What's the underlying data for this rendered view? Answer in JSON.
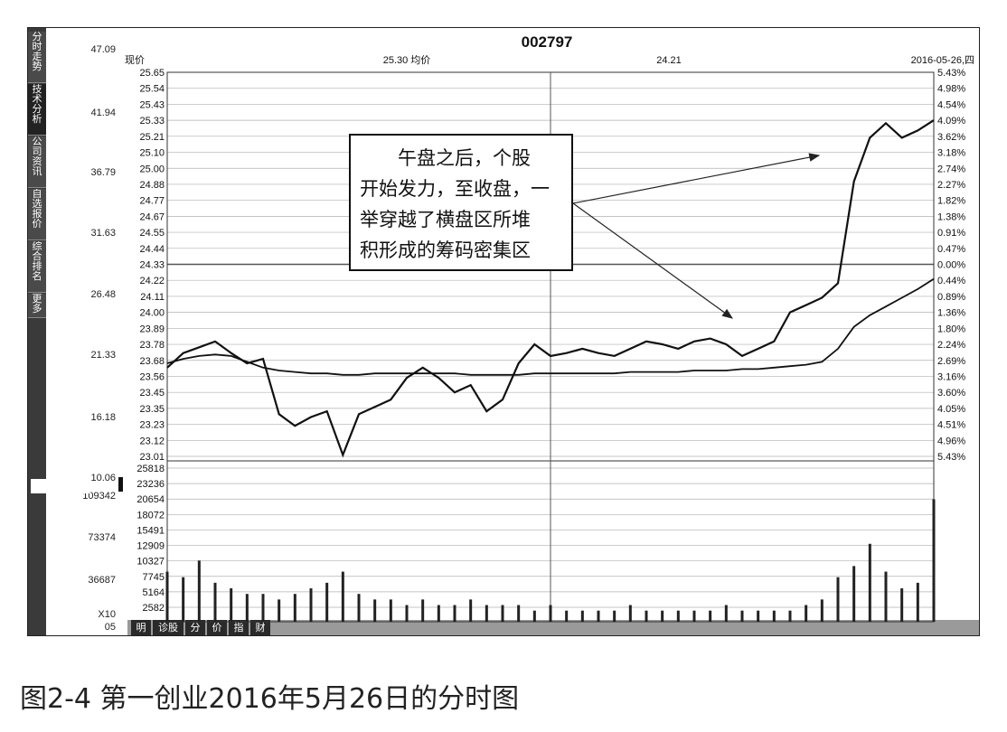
{
  "header": {
    "code": "002797",
    "left_label": "现价",
    "mid_label": "25.30 均价",
    "mid2_label": "24.21",
    "date_label": "2016-05-26,四"
  },
  "left_axis": [
    "47.09",
    "41.94",
    "36.79",
    "31.63",
    "26.48",
    "21.33",
    "16.18",
    "10.06",
    "109342",
    "73374",
    "36687",
    "X10",
    "05"
  ],
  "side_tabs": [
    "分时走势",
    "技术分析",
    "公司资讯",
    "自选报价",
    "综合排名",
    "更多"
  ],
  "bottom_tabs": [
    "明",
    "诊股",
    "分",
    "价",
    "指",
    "财"
  ],
  "annotation": {
    "lines": [
      "午盘之后，个股",
      "开始发力，至收盘，一",
      "举穿越了横盘区所堆",
      "积形成的筹码密集区"
    ]
  },
  "caption": "图2-4 第一创业2016年5月26日的分时图",
  "colors": {
    "line": "#111111",
    "grid": "#9a9a9a",
    "frame": "#222222"
  },
  "chart_data": {
    "type": "line",
    "title": "002797",
    "price_ticks": [
      "25.65",
      "25.54",
      "25.43",
      "25.33",
      "25.21",
      "25.10",
      "25.00",
      "24.88",
      "24.77",
      "24.67",
      "24.55",
      "24.44",
      "24.33",
      "24.22",
      "24.11",
      "24.00",
      "23.89",
      "23.78",
      "23.68",
      "23.56",
      "23.45",
      "23.35",
      "23.23",
      "23.12",
      "23.01"
    ],
    "pct_ticks": [
      "5.43%",
      "4.98%",
      "4.54%",
      "4.09%",
      "3.62%",
      "3.18%",
      "2.74%",
      "2.27%",
      "1.82%",
      "1.38%",
      "0.91%",
      "0.47%",
      "0.00%",
      "0.44%",
      "0.89%",
      "1.36%",
      "1.80%",
      "2.24%",
      "2.69%",
      "3.16%",
      "3.60%",
      "4.05%",
      "4.51%",
      "4.96%",
      "5.43%"
    ],
    "vol_ticks": [
      "25818",
      "23236",
      "20654",
      "18072",
      "15491",
      "12909",
      "10327",
      "7745",
      "5164",
      "2582"
    ],
    "ylim": [
      23.01,
      25.65
    ],
    "prev_close": 24.33,
    "x_minutes": [
      0,
      5,
      10,
      15,
      20,
      25,
      30,
      35,
      40,
      45,
      50,
      55,
      60,
      65,
      70,
      75,
      80,
      85,
      90,
      95,
      100,
      105,
      110,
      115,
      120,
      125,
      130,
      135,
      140,
      145,
      150,
      155,
      160,
      165,
      170,
      175,
      180,
      185,
      190,
      195,
      200,
      205,
      210,
      215,
      220,
      225,
      230,
      235,
      240
    ],
    "series": [
      {
        "values": [
          23.62,
          23.72,
          23.76,
          23.8,
          23.72,
          23.65,
          23.68,
          23.3,
          23.22,
          23.28,
          23.32,
          23.02,
          23.3,
          23.35,
          23.4,
          23.55,
          23.62,
          23.55,
          23.45,
          23.5,
          23.32,
          23.4,
          23.65,
          23.78,
          23.7,
          23.72,
          23.75,
          23.72,
          23.7,
          23.75,
          23.8,
          23.78,
          23.75,
          23.8,
          23.82,
          23.78,
          23.7,
          23.75,
          23.8,
          24.0,
          24.05,
          24.1,
          24.2,
          24.9,
          25.2,
          25.3,
          25.2,
          25.25,
          25.32
        ]
      },
      {
        "values": [
          23.65,
          23.68,
          23.7,
          23.71,
          23.7,
          23.66,
          23.62,
          23.6,
          23.59,
          23.58,
          23.58,
          23.57,
          23.57,
          23.58,
          23.58,
          23.58,
          23.58,
          23.58,
          23.58,
          23.57,
          23.57,
          23.57,
          23.57,
          23.58,
          23.58,
          23.58,
          23.58,
          23.58,
          23.58,
          23.59,
          23.59,
          23.59,
          23.59,
          23.6,
          23.6,
          23.6,
          23.61,
          23.61,
          23.62,
          23.63,
          23.64,
          23.66,
          23.75,
          23.9,
          23.98,
          24.04,
          24.1,
          24.16,
          24.23
        ]
      }
    ],
    "volume": [
      9,
      8,
      11,
      7,
      6,
      5,
      5,
      4,
      5,
      6,
      7,
      9,
      5,
      4,
      4,
      3,
      4,
      3,
      3,
      4,
      3,
      3,
      3,
      2,
      3,
      2,
      2,
      2,
      2,
      3,
      2,
      2,
      2,
      2,
      2,
      3,
      2,
      2,
      2,
      2,
      3,
      4,
      8,
      10,
      14,
      9,
      6,
      7,
      22
    ]
  }
}
